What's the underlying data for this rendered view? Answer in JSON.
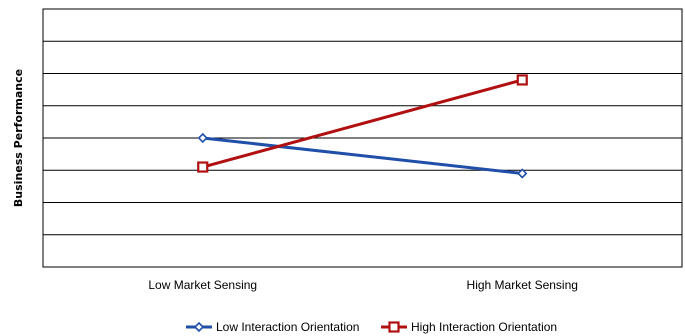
{
  "chart_data": {
    "type": "line",
    "title": "",
    "xlabel": "",
    "ylabel": "Business Performance",
    "categories": [
      "Low Market Sensing",
      "High Market Sensing"
    ],
    "ylim": [
      0,
      8
    ],
    "grid": true,
    "y_tick_labels_shown": false,
    "legend_position": "bottom",
    "series": [
      {
        "name": "Low Interaction Orientation",
        "values": [
          4.0,
          2.9
        ],
        "color": "#1f4fa8",
        "marker": "diamond"
      },
      {
        "name": "High Interaction Orientation",
        "values": [
          3.1,
          5.8
        ],
        "color": "#b01010",
        "marker": "square"
      }
    ]
  }
}
